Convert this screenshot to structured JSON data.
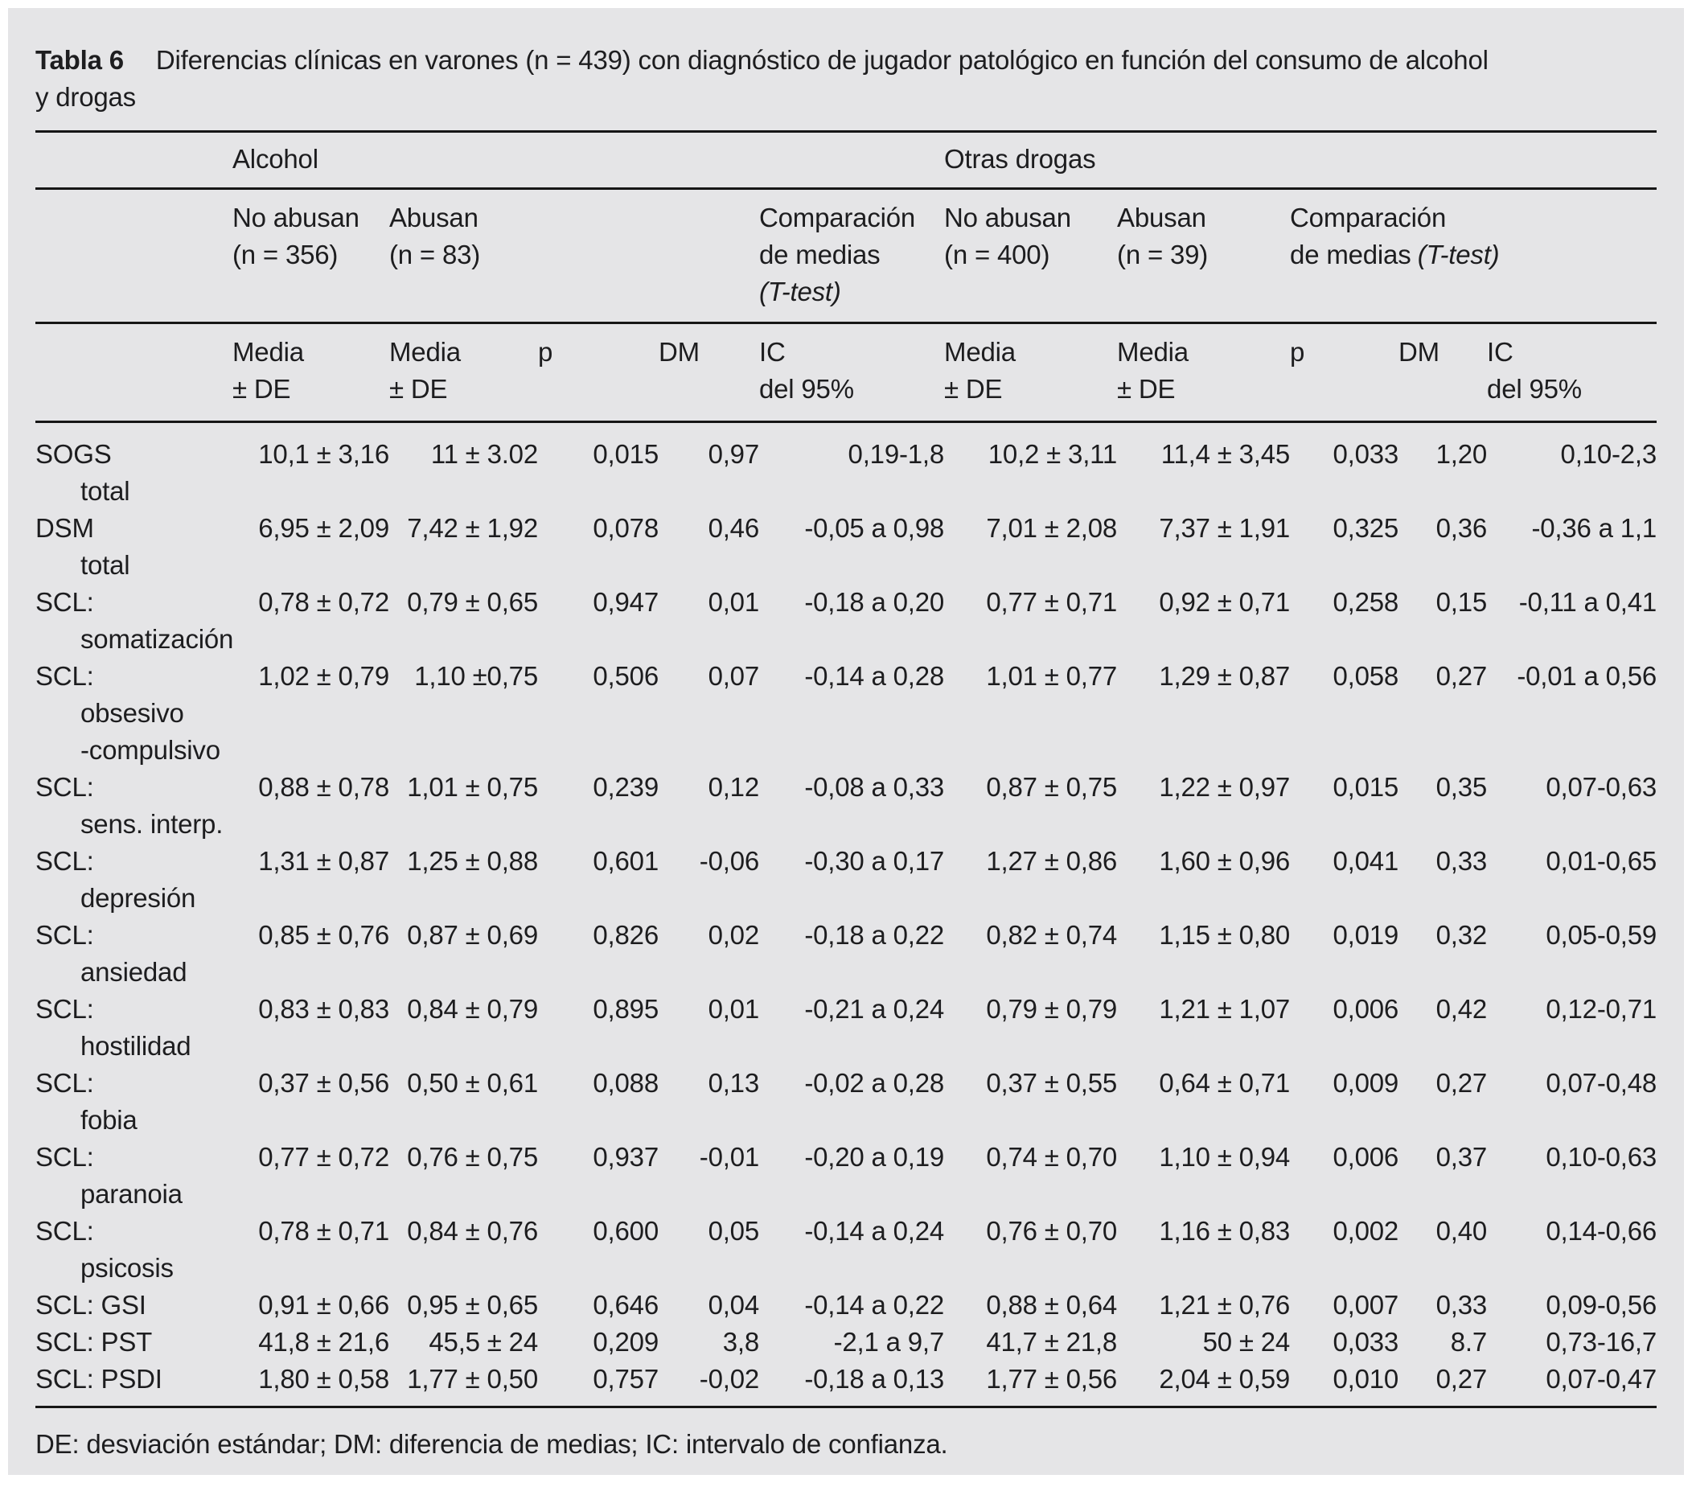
{
  "page": {
    "background": "#ffffff",
    "panel_background": "#e5e5e7",
    "text_color": "#1d1d1f",
    "rule_color": "#161616"
  },
  "table": {
    "label": "Tabla 6",
    "title_line1": "Diferencias clínicas en varones (n = 439) con diagnóstico de jugador patológico en función del consumo de alcohol",
    "title_line2": "y drogas",
    "groups": {
      "alcohol": "Alcohol",
      "otras_drogas": "Otras drogas"
    },
    "subgroups": {
      "alcohol_no_abusan": {
        "line1": "No abusan",
        "line2": "(n = 356)"
      },
      "alcohol_abusan": {
        "line1": "Abusan",
        "line2": "(n = 83)"
      },
      "alcohol_comparacion": {
        "line1": "Comparación",
        "line2": "de medias",
        "line3_italic": "(T-test)"
      },
      "drogas_no_abusan": {
        "line1": "No abusan",
        "line2": "(n = 400)"
      },
      "drogas_abusan": {
        "line1": "Abusan",
        "line2": "(n = 39)"
      },
      "drogas_comparacion": {
        "line1": "Comparación",
        "line2": "de medias",
        "line2_italic": "(T-test)"
      }
    },
    "column_headers": [
      {
        "line1": "Media",
        "line2": "± DE"
      },
      {
        "line1": "Media",
        "line2": "± DE"
      },
      {
        "line1": "p",
        "line2": ""
      },
      {
        "line1": "DM",
        "line2": ""
      },
      {
        "line1": "IC",
        "line2": "del 95%"
      },
      {
        "line1": "Media",
        "line2": "± DE"
      },
      {
        "line1": "Media",
        "line2": "± DE"
      },
      {
        "line1": "p",
        "line2": ""
      },
      {
        "line1": "DM",
        "line2": ""
      },
      {
        "line1": "IC",
        "line2": "del 95%"
      }
    ],
    "rows": [
      {
        "label": [
          "SOGS",
          "total"
        ],
        "values": [
          "10,1 ± 3,16",
          "11 ± 3.02",
          "0,015",
          "0,97",
          "0,19-1,8",
          "10,2 ± 3,11",
          "11,4 ± 3,45",
          "0,033",
          "1,20",
          "0,10-2,3"
        ]
      },
      {
        "label": [
          "DSM",
          "total"
        ],
        "values": [
          "6,95 ± 2,09",
          "7,42 ± 1,92",
          "0,078",
          "0,46",
          "-0,05 a 0,98",
          "7,01 ± 2,08",
          "7,37 ± 1,91",
          "0,325",
          "0,36",
          "-0,36 a 1,1"
        ]
      },
      {
        "label": [
          "SCL:",
          "somatización"
        ],
        "values": [
          "0,78 ± 0,72",
          "0,79 ± 0,65",
          "0,947",
          "0,01",
          "-0,18 a 0,20",
          "0,77 ± 0,71",
          "0,92 ± 0,71",
          "0,258",
          "0,15",
          "-0,11 a 0,41"
        ]
      },
      {
        "label": [
          "SCL:",
          "obsesivo",
          "-compulsivo"
        ],
        "values": [
          "1,02 ± 0,79",
          "1,10 ±0,75",
          "0,506",
          "0,07",
          "-0,14 a 0,28",
          "1,01 ± 0,77",
          "1,29 ± 0,87",
          "0,058",
          "0,27",
          "-0,01 a 0,56"
        ]
      },
      {
        "label": [
          "SCL:",
          "sens. interp."
        ],
        "values": [
          "0,88 ± 0,78",
          "1,01 ± 0,75",
          "0,239",
          "0,12",
          "-0,08 a 0,33",
          "0,87 ± 0,75",
          "1,22 ± 0,97",
          "0,015",
          "0,35",
          "0,07-0,63"
        ]
      },
      {
        "label": [
          "SCL:",
          "depresión"
        ],
        "values": [
          "1,31 ± 0,87",
          "1,25 ± 0,88",
          "0,601",
          "-0,06",
          "-0,30 a 0,17",
          "1,27 ± 0,86",
          "1,60 ± 0,96",
          "0,041",
          "0,33",
          "0,01-0,65"
        ]
      },
      {
        "label": [
          "SCL:",
          "ansiedad"
        ],
        "values": [
          "0,85 ± 0,76",
          "0,87 ± 0,69",
          "0,826",
          "0,02",
          "-0,18 a 0,22",
          "0,82 ± 0,74",
          "1,15 ± 0,80",
          "0,019",
          "0,32",
          "0,05-0,59"
        ]
      },
      {
        "label": [
          "SCL:",
          "hostilidad"
        ],
        "values": [
          "0,83 ± 0,83",
          "0,84 ± 0,79",
          "0,895",
          "0,01",
          "-0,21 a 0,24",
          "0,79 ± 0,79",
          "1,21 ± 1,07",
          "0,006",
          "0,42",
          "0,12-0,71"
        ]
      },
      {
        "label": [
          "SCL:",
          "fobia"
        ],
        "values": [
          "0,37 ± 0,56",
          "0,50 ± 0,61",
          "0,088",
          "0,13",
          "-0,02 a 0,28",
          "0,37 ± 0,55",
          "0,64 ± 0,71",
          "0,009",
          "0,27",
          "0,07-0,48"
        ]
      },
      {
        "label": [
          "SCL:",
          "paranoia"
        ],
        "values": [
          "0,77 ± 0,72",
          "0,76 ± 0,75",
          "0,937",
          "-0,01",
          "-0,20 a 0,19",
          "0,74 ± 0,70",
          "1,10 ± 0,94",
          "0,006",
          "0,37",
          "0,10-0,63"
        ]
      },
      {
        "label": [
          "SCL:",
          "psicosis"
        ],
        "values": [
          "0,78 ± 0,71",
          "0,84 ± 0,76",
          "0,600",
          "0,05",
          "-0,14 a 0,24",
          "0,76 ± 0,70",
          "1,16 ± 0,83",
          "0,002",
          "0,40",
          "0,14-0,66"
        ]
      },
      {
        "label": [
          "SCL: GSI"
        ],
        "values": [
          "0,91 ± 0,66",
          "0,95 ± 0,65",
          "0,646",
          "0,04",
          "-0,14 a 0,22",
          "0,88 ± 0,64",
          "1,21 ± 0,76",
          "0,007",
          "0,33",
          "0,09-0,56"
        ]
      },
      {
        "label": [
          "SCL: PST"
        ],
        "values": [
          "41,8 ± 21,6",
          "45,5 ± 24",
          "0,209",
          "3,8",
          "-2,1 a 9,7",
          "41,7 ± 21,8",
          "50 ± 24",
          "0,033",
          "8.7",
          "0,73-16,7"
        ]
      },
      {
        "label": [
          "SCL: PSDI"
        ],
        "values": [
          "1,80 ± 0,58",
          "1,77 ± 0,50",
          "0,757",
          "-0,02",
          "-0,18 a 0,13",
          "1,77 ± 0,56",
          "2,04 ± 0,59",
          "0,010",
          "0,27",
          "0,07-0,47"
        ]
      }
    ],
    "footnote": "DE: desviación estándar; DM: diferencia de medias; IC: intervalo de confianza."
  }
}
